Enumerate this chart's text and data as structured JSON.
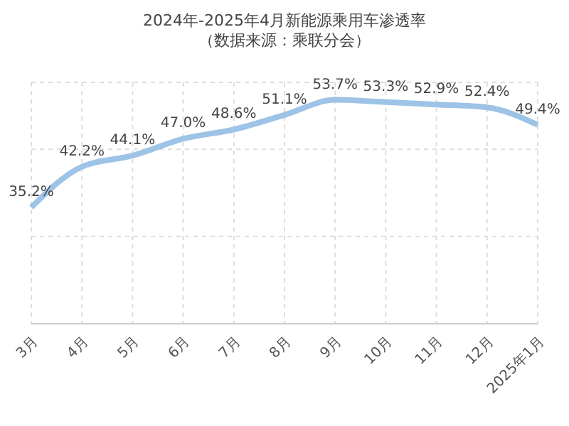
{
  "chart_data": {
    "type": "line",
    "title": "2024年-2025年4月新能源乘用车渗透率",
    "subtitle": "（数据来源：乘联分会）",
    "categories": [
      "3月",
      "4月",
      "5月",
      "6月",
      "7月",
      "8月",
      "9月",
      "10月",
      "11月",
      "12月",
      "2025年1月"
    ],
    "series": [
      {
        "color": "#9dc3e6",
        "values": [
          35.2,
          42.2,
          44.1,
          47.0,
          48.6,
          51.1,
          53.7,
          53.3,
          52.9,
          52.4,
          49.4
        ],
        "value_labels": [
          "35.2%",
          "42.2%",
          "44.1%",
          "47.0%",
          "48.6%",
          "51.1%",
          "53.7%",
          "53.3%",
          "52.9%",
          "52.4%",
          "49.4%"
        ]
      }
    ],
    "grid": true,
    "legend": false,
    "marker": "none",
    "line_style": "solid",
    "tick_labels": "x"
  }
}
